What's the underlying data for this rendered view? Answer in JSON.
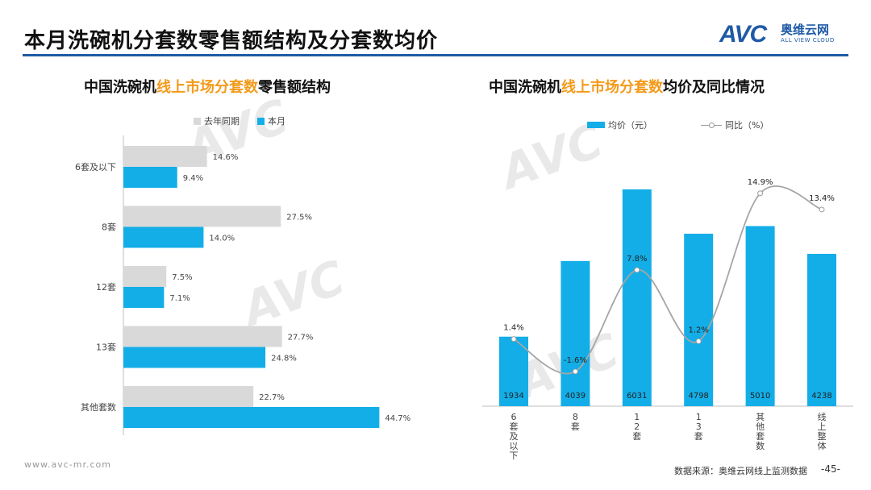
{
  "header": {
    "title": "本月洗碗机分套数零售额结构及分套数均价",
    "logo_avc": "AVC",
    "logo_cn": "奥维云网",
    "logo_en": "ALL VIEW CLOUD"
  },
  "left_chart": {
    "title_a": "中国洗碗机",
    "title_hl": "线上市场分套数",
    "title_b": "零售额结构"
  },
  "right_chart": {
    "title_a": "中国洗碗机",
    "title_hl": "线上市场分套数",
    "title_b": "均价及同比情况"
  },
  "chart_data": [
    {
      "type": "bar",
      "orientation": "horizontal",
      "title": "中国洗碗机线上市场分套数零售额结构",
      "categories": [
        "6套及以下",
        "8套",
        "12套",
        "13套",
        "其他套数"
      ],
      "series": [
        {
          "name": "去年同期",
          "values": [
            14.6,
            27.5,
            7.5,
            27.7,
            22.7
          ],
          "labels": [
            "14.6%",
            "27.5%",
            "7.5%",
            "27.7%",
            "22.7%"
          ],
          "color": "#d9d9d9"
        },
        {
          "name": "本月",
          "values": [
            9.4,
            14.0,
            7.1,
            24.8,
            44.7
          ],
          "labels": [
            "9.4%",
            "14.0%",
            "7.1%",
            "24.8%",
            "44.7%"
          ],
          "color": "#13aee8"
        }
      ],
      "xlim": [
        0,
        50
      ],
      "legend": "top-left"
    },
    {
      "type": "bar",
      "title": "中国洗碗机线上市场分套数均价及同比情况",
      "categories": [
        "6套及以下",
        "8套",
        "12套",
        "13套",
        "其他套数",
        "线上整体"
      ],
      "series": [
        {
          "name": "均价（元）",
          "type": "bar",
          "values": [
            1934,
            4039,
            6031,
            4798,
            5010,
            4238
          ],
          "color": "#13aee8"
        },
        {
          "name": "同比（%）",
          "type": "line",
          "values": [
            1.4,
            -1.6,
            7.8,
            1.2,
            14.9,
            13.4
          ],
          "labels": [
            "1.4%",
            "-1.6%",
            "7.8%",
            "1.2%",
            "14.9%",
            "13.4%"
          ],
          "color": "#a6a6a6"
        }
      ],
      "ylim_bar": [
        0,
        8000
      ],
      "ylim_line": [
        -5,
        20
      ],
      "legend": "top"
    }
  ],
  "footer": {
    "url": "www.avc-mr.com",
    "source": "数据来源：奥维云网线上监测数据",
    "page": "-45-"
  }
}
